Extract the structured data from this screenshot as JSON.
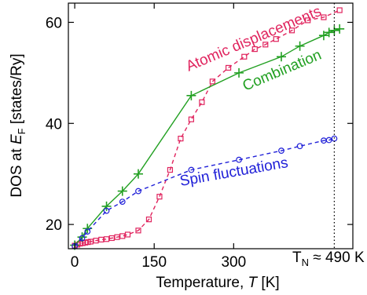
{
  "chart_data": {
    "type": "line",
    "title": "",
    "xlabel": "Temperature, T [K]",
    "xlabel_parts": {
      "before": "Temperature, ",
      "italic": "T",
      "after": " [K]"
    },
    "ylabel": "DOS at E_F [states/Ry]",
    "ylabel_parts": {
      "before": "DOS at ",
      "italic": "E",
      "sub": "F",
      "after": " [states/Ry]"
    },
    "xlim": [
      -12,
      525
    ],
    "ylim": [
      15.2,
      63.8
    ],
    "x_ticks": [
      0,
      150,
      300
    ],
    "x_tick_labels": [
      "0",
      "150",
      "300"
    ],
    "y_ticks": [
      20,
      40,
      60
    ],
    "y_tick_labels": [
      "20",
      "40",
      "60"
    ],
    "grid": false,
    "legend": "none (series labelled inline)",
    "series": [
      {
        "name": "Atomic displacements",
        "color": "#e0245e",
        "marker": "square",
        "line": "dashed",
        "x": [
          0,
          5,
          10,
          15,
          20,
          25,
          30,
          40,
          50,
          60,
          70,
          80,
          90,
          100,
          120,
          140,
          160,
          180,
          200,
          220,
          240,
          260,
          290,
          320,
          340,
          360,
          380,
          410,
          440,
          470,
          500
        ],
        "y": [
          15.8,
          16.0,
          16.2,
          16.3,
          16.4,
          16.5,
          16.6,
          16.8,
          17.0,
          17.1,
          17.3,
          17.5,
          17.7,
          18.0,
          18.8,
          21.0,
          25.5,
          30.8,
          37.0,
          40.8,
          44.2,
          48.3,
          51.0,
          53.2,
          54.7,
          55.6,
          56.7,
          58.4,
          60.4,
          61.0,
          62.4
        ]
      },
      {
        "name": "Combination",
        "color": "#22a022",
        "marker": "plus",
        "line": "solid",
        "x": [
          0,
          14,
          24,
          60,
          90,
          120,
          220,
          310,
          390,
          425,
          470,
          480,
          490,
          500
        ],
        "y": [
          15.9,
          17.5,
          19.2,
          23.6,
          26.6,
          30.0,
          45.5,
          50.0,
          53.2,
          55.3,
          57.4,
          58.0,
          58.4,
          58.7
        ]
      },
      {
        "name": "Spin fluctuations",
        "color": "#2020d8",
        "marker": "circle",
        "line": "dashed",
        "x": [
          0,
          14,
          24,
          60,
          90,
          120,
          220,
          310,
          390,
          425,
          470,
          480,
          490
        ],
        "y": [
          15.7,
          17.3,
          18.6,
          22.7,
          24.5,
          26.6,
          30.8,
          32.8,
          34.6,
          35.5,
          36.6,
          36.7,
          37.0
        ]
      }
    ],
    "vertical_line": {
      "x": 490,
      "style": "dotted",
      "label_text": "T",
      "label_sub": "N",
      "label_rest": " ≈ 490 K"
    }
  }
}
